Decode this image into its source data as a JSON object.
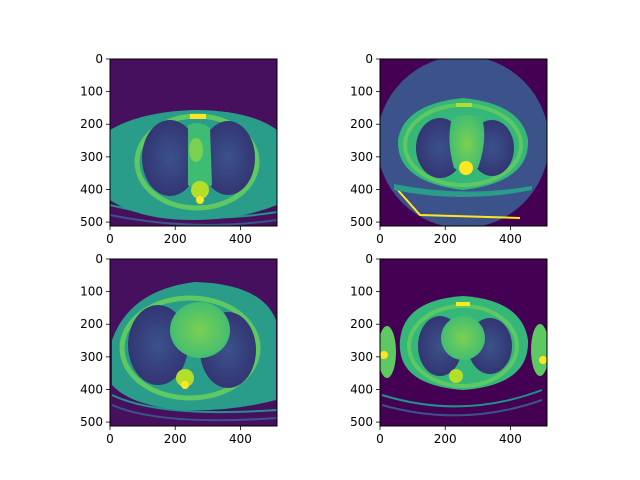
{
  "figure": {
    "background": "#ffffff",
    "colormap": "viridis",
    "colors": {
      "viridis_dark": "#440154",
      "viridis_blue": "#3b528b",
      "viridis_teal": "#21918c",
      "viridis_green": "#5ec962",
      "viridis_yellow": "#fde725"
    },
    "panels": [
      {
        "name": "ct-slice-top-left",
        "image": "axial chest CT slice (upper thorax, lungs and mediastinum)",
        "x_ticks": [
          "0",
          "200",
          "400"
        ],
        "y_ticks": [
          "0",
          "100",
          "200",
          "300",
          "400",
          "500"
        ]
      },
      {
        "name": "ct-slice-top-right",
        "image": "axial chest CT slice with circular field of view (lungs and mediastinum)",
        "x_ticks": [
          "0",
          "200",
          "400"
        ],
        "y_ticks": [
          "0",
          "100",
          "200",
          "300",
          "400",
          "500"
        ]
      },
      {
        "name": "ct-slice-bottom-left",
        "image": "axial chest CT slice (heart level, lungs)",
        "x_ticks": [
          "0",
          "200",
          "400"
        ],
        "y_ticks": [
          "0",
          "100",
          "200",
          "300",
          "400",
          "500"
        ]
      },
      {
        "name": "ct-slice-bottom-right",
        "image": "axial chest CT slice (lower thorax with arms at sides)",
        "x_ticks": [
          "0",
          "200",
          "400"
        ],
        "y_ticks": [
          "0",
          "100",
          "200",
          "300",
          "400",
          "500"
        ]
      }
    ]
  }
}
